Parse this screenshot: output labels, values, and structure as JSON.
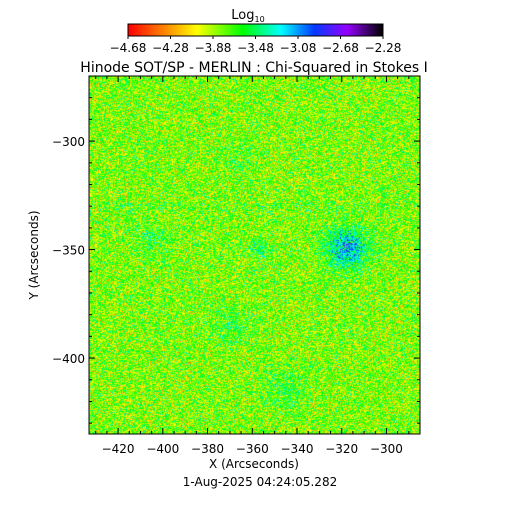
{
  "chart_data": {
    "type": "heatmap",
    "title": "Hinode SOT/SP - MERLIN : Chi-Squared in Stokes I",
    "colorbar": {
      "label_main": "Log",
      "label_sub": "10",
      "ticks": [
        "-4.68",
        "-4.28",
        "-3.88",
        "-3.48",
        "-3.08",
        "-2.68",
        "-2.28"
      ],
      "range": [
        -4.68,
        -2.28
      ],
      "colormap": "rainbow (red low, green middle, blue/violet/black high)"
    },
    "xlabel": "X (Arcseconds)",
    "ylabel": "Y (Arcseconds)",
    "xlim": [
      -433,
      -285
    ],
    "ylim": [
      -435,
      -270
    ],
    "xticks": [
      -420,
      -400,
      -380,
      -360,
      -340,
      -320,
      -300
    ],
    "yticks": [
      -300,
      -350,
      -400
    ],
    "background_level": -3.8,
    "features": [
      {
        "kind": "blue patch",
        "x": -318,
        "y": -349,
        "level": -3.1
      },
      {
        "kind": "blue patch",
        "x": -357,
        "y": -349,
        "level": -3.5
      },
      {
        "kind": "green patch",
        "x": -405,
        "y": -345,
        "level": -3.6
      },
      {
        "kind": "green patch",
        "x": -370,
        "y": -385,
        "level": -3.6
      },
      {
        "kind": "green patch",
        "x": -365,
        "y": -308,
        "level": -3.7
      },
      {
        "kind": "green patch",
        "x": -345,
        "y": -415,
        "level": -3.6
      }
    ],
    "footer": "1-Aug-2025 04:24:05.282"
  }
}
